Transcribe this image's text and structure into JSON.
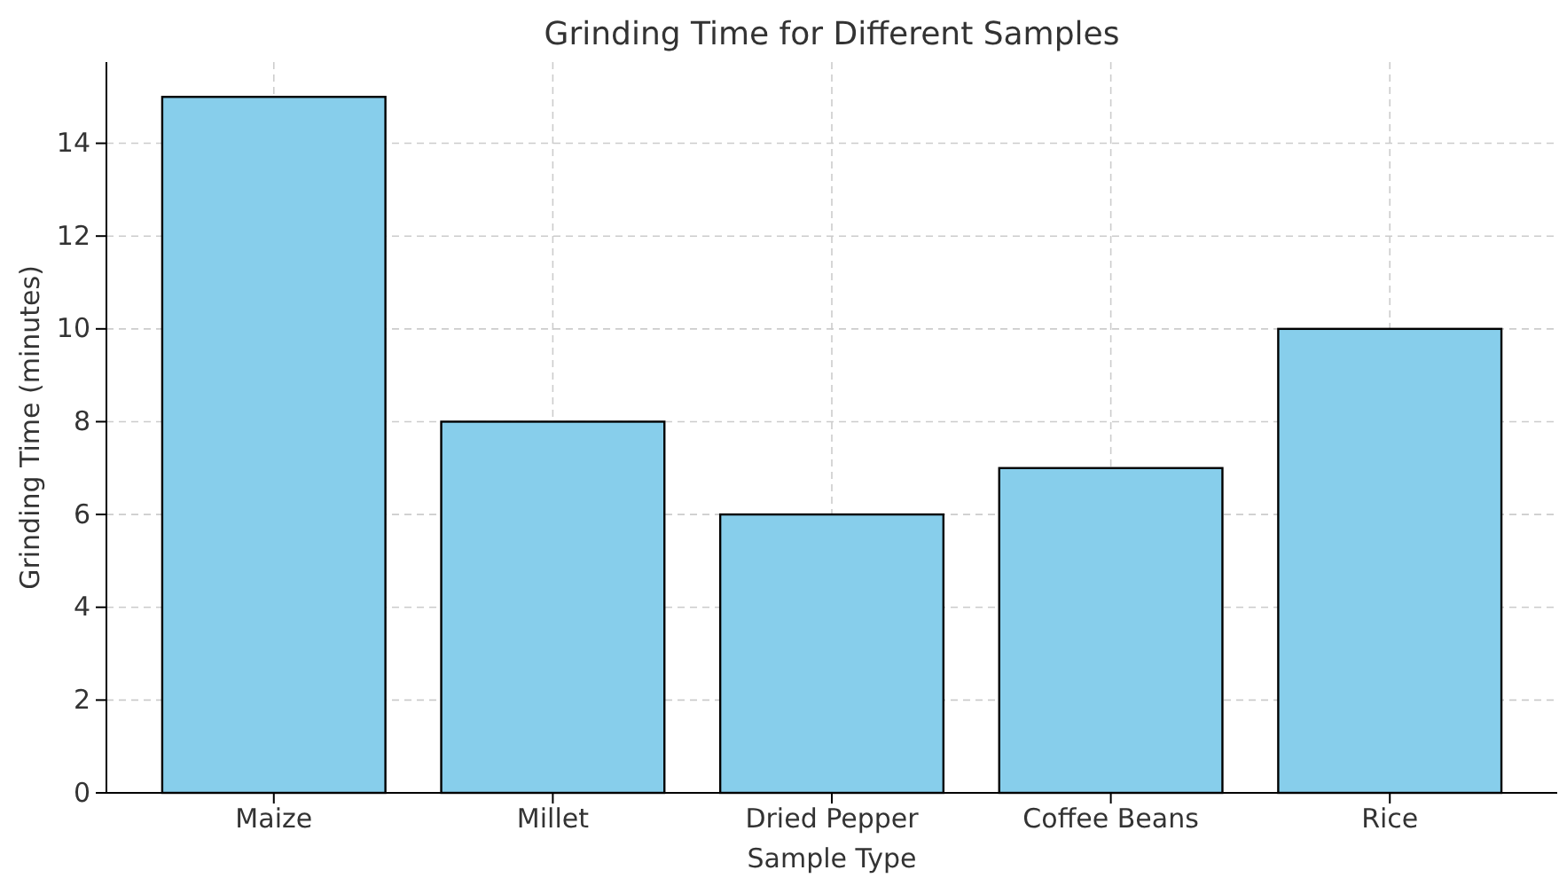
{
  "chart_data": {
    "type": "bar",
    "title": "Grinding Time for Different Samples",
    "xlabel": "Sample Type",
    "ylabel": "Grinding Time (minutes)",
    "categories": [
      "Maize",
      "Millet",
      "Dried Pepper",
      "Coffee Beans",
      "Rice"
    ],
    "values": [
      15,
      8,
      6,
      7,
      10
    ],
    "color": "#87ceeb",
    "ylim": [
      0,
      15.75
    ],
    "yticks": [
      0,
      2,
      4,
      6,
      8,
      10,
      12,
      14
    ],
    "grid": true
  }
}
